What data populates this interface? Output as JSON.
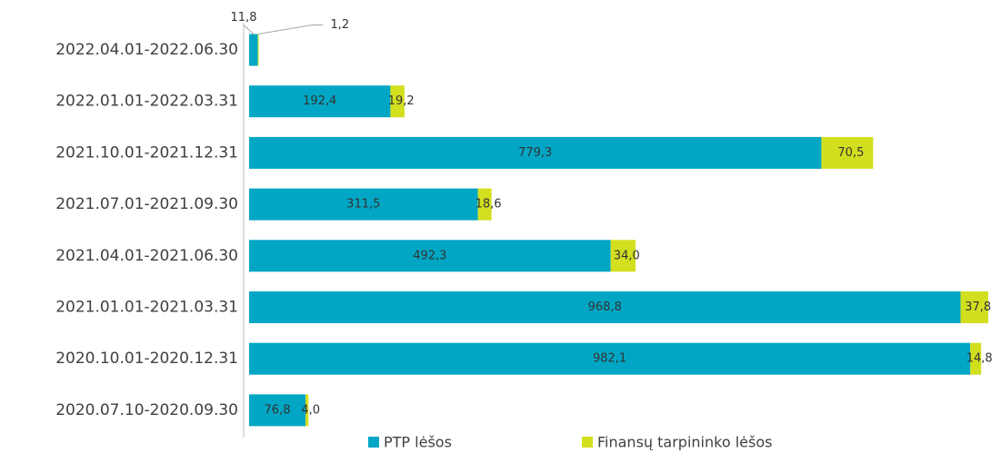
{
  "chart_data": {
    "type": "stacked-barh",
    "categories": [
      "2022.04.01-2022.06.30",
      "2022.01.01-2022.03.31",
      "2021.10.01-2021.12.31",
      "2021.07.01-2021.09.30",
      "2021.04.01-2021.06.30",
      "2021.01.01-2021.03.31",
      "2020.10.01-2020.12.31",
      "2020.07.10-2020.09.30"
    ],
    "series": [
      {
        "name": "PTP lėšos",
        "color": "#00a6c4",
        "values": [
          11.8,
          192.4,
          779.3,
          311.5,
          492.3,
          968.8,
          982.1,
          76.8
        ],
        "value_labels": [
          "11,8",
          "192,4",
          "779,3",
          "311,5",
          "492,3",
          "968,8",
          "982,1",
          "76,8"
        ]
      },
      {
        "name": "Finansų tarpininko lėšos",
        "color": "#d2df1f",
        "values": [
          1.2,
          19.2,
          70.5,
          18.6,
          34.0,
          37.8,
          14.8,
          4.0
        ],
        "value_labels": [
          "1,2",
          "19,2",
          "70,5",
          "18,6",
          "34,0",
          "37,8",
          "14,8",
          "4,0"
        ]
      }
    ],
    "legend": "bottom"
  }
}
